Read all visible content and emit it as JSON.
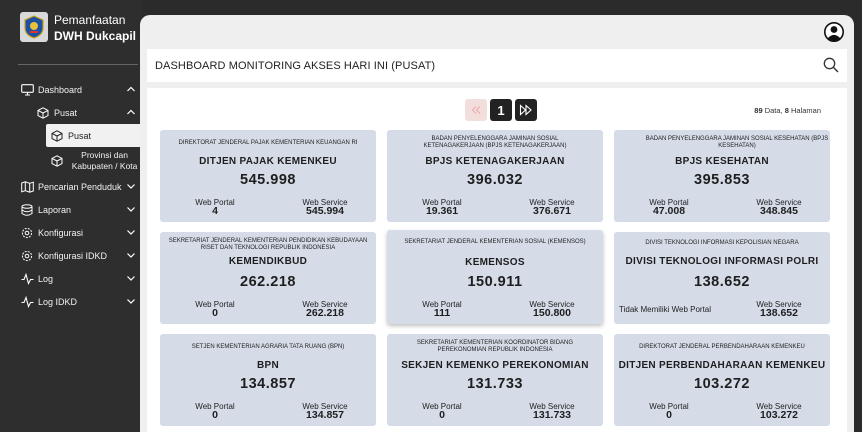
{
  "app": {
    "name_line1": "Pemanfaatan",
    "name_line2": "DWH Dukcapil"
  },
  "sidebar": {
    "items": [
      {
        "label": "Dashboard",
        "icon": "monitor-icon",
        "expanded": true
      },
      {
        "label": "Pusat",
        "icon": "cube-icon",
        "expanded": true
      },
      {
        "label": "Pusat",
        "icon": "cube-icon",
        "active": true
      },
      {
        "label": "Provinsi dan Kabupaten / Kota",
        "icon": "cube-icon"
      },
      {
        "label": "Pencarian Penduduk",
        "icon": "map-icon"
      },
      {
        "label": "Laporan",
        "icon": "database-icon"
      },
      {
        "label": "Konfigurasi",
        "icon": "settings-icon"
      },
      {
        "label": "Konfigurasi IDKD",
        "icon": "settings-icon"
      },
      {
        "label": "Log",
        "icon": "activity-icon"
      },
      {
        "label": "Log IDKD",
        "icon": "activity-icon"
      }
    ]
  },
  "header": {
    "title": "DASHBOARD MONITORING AKSES HARI INI (PUSAT)"
  },
  "pagination": {
    "current": "1",
    "total_data": "89",
    "data_label": " Data, ",
    "total_pages": "8",
    "pages_label": " Halaman"
  },
  "labels": {
    "web_portal": "Web Portal",
    "web_service": "Web Service",
    "no_web_portal": "Tidak Memiliki Web Portal"
  },
  "cards": [
    {
      "org": "DIREKTORAT JENDERAL PAJAK KEMENTERIAN KEUANGAN RI",
      "name": "DITJEN PAJAK KEMENKEU",
      "total": "545.998",
      "web_portal": "4",
      "web_service": "545.994"
    },
    {
      "org": "BADAN PENYELENGGARA JAMINAN SOSIAL KETENAGAKERJAAN (BPJS KETENAGAKERJAAN)",
      "name": "BPJS KETENAGAKERJAAN",
      "total": "396.032",
      "web_portal": "19.361",
      "web_service": "376.671"
    },
    {
      "org": "BADAN PENYELENGGARA JAMINAN SOSIAL KESEHATAN (BPJS KESEHATAN)",
      "name": "BPJS KESEHATAN",
      "total": "395.853",
      "web_portal": "47.008",
      "web_service": "348.845"
    },
    {
      "org": "SEKRETARIAT JENDERAL KEMENTERIAN PENDIDIKAN KEBUDAYAAN RISET DAN TEKNOLOGI REPUBLIK INDONESIA",
      "name": "KEMENDIKBUD",
      "total": "262.218",
      "web_portal": "0",
      "web_service": "262.218"
    },
    {
      "org": "SEKRETARIAT JENDERAL KEMENTERIAN SOSIAL (KEMENSOS)",
      "name": "KEMENSOS",
      "total": "150.911",
      "web_portal": "111",
      "web_service": "150.800"
    },
    {
      "org": "DIVISI TEKNOLOGI INFORMASI KEPOLISIAN NEGARA",
      "name": "DIVISI TEKNOLOGI INFORMASI POLRI",
      "total": "138.652",
      "web_portal": "",
      "web_service": "138.652"
    },
    {
      "org": "SETJEN KEMENTERIAN AGRARIA TATA RUANG (BPN)",
      "name": "BPN",
      "total": "134.857",
      "web_portal": "0",
      "web_service": "134.857"
    },
    {
      "org": "SEKRETARIAT KEMENTERIAN KOORDINATOR BIDANG PEREKONOMIAN REPUBLIK INDONESIA",
      "name": "SEKJEN KEMENKO PEREKONOMIAN",
      "total": "131.733",
      "web_portal": "0",
      "web_service": "131.733"
    },
    {
      "org": "DIREKTORAT JENDERAL PERBENDAHARAAN KEMENKEU",
      "name": "DITJEN PERBENDAHARAAN KEMENKEU",
      "total": "103.272",
      "web_portal": "0",
      "web_service": "103.272"
    }
  ]
}
